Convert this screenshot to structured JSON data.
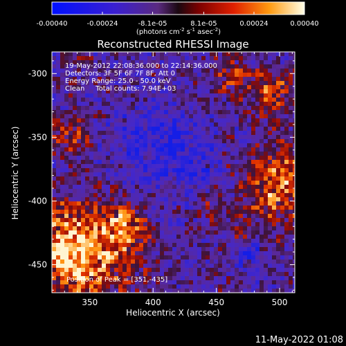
{
  "colorbar": {
    "ticks": [
      {
        "value": -0.0004,
        "label": "-0.00040"
      },
      {
        "value": -0.00024,
        "label": "-0.00024"
      },
      {
        "value": -8.1e-05,
        "label": "-8.1e-05"
      },
      {
        "value": 8.1e-05,
        "label": "8.1e-05"
      },
      {
        "value": 0.00024,
        "label": "0.00024"
      },
      {
        "value": 0.0004,
        "label": "0.00040"
      }
    ],
    "range": [
      -0.0004,
      0.0004
    ],
    "units": {
      "prefix": "(photons cm",
      "exp1": "-2",
      "mid1": " s",
      "exp2": "-1",
      "mid2": " asec",
      "exp3": "-2",
      "suffix": ")"
    }
  },
  "chart_data": {
    "type": "heatmap",
    "title": "Reconstructed RHESSI Image",
    "xlabel": "Heliocentric X (arcsec)",
    "ylabel": "Heliocentric Y (arcsec)",
    "xlim": [
      320,
      512
    ],
    "ylim": [
      -472,
      -283
    ],
    "xticks": [
      350,
      400,
      450,
      500
    ],
    "yticks": [
      -300,
      -350,
      -400,
      -450
    ],
    "annotations": [
      "19-May-2012 22:08:36.000 to 22:14:36.000",
      "Detectors: 3F 5F 6F 7F 8F, Att 0",
      "Energy Range: 25.0 - 50.0 keV",
      "Clean     Total counts: 7.94E+03"
    ],
    "peak_label": "Position of Peak = [351,-435]",
    "peak": [
      351,
      -435
    ]
  },
  "footer": {
    "timestamp": "11-May-2022 01:08"
  }
}
